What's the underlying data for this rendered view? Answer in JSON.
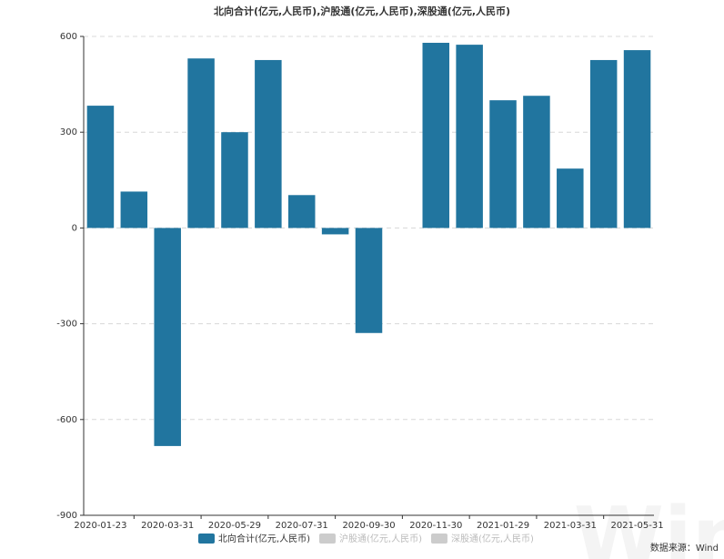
{
  "chart_data": {
    "type": "bar",
    "title": "北向合计(亿元,人民币),沪股通(亿元,人民币),深股通(亿元,人民币)",
    "categories": [
      "2020-01-23",
      null,
      "2020-03-31",
      null,
      "2020-05-29",
      null,
      "2020-07-31",
      null,
      "2020-09-30",
      null,
      "2020-11-30",
      null,
      "2021-01-29",
      null,
      "2021-03-31",
      null,
      "2021-05-31"
    ],
    "series": [
      {
        "name": "北向合计(亿元,人民币)",
        "color": "#21759f",
        "values": [
          383,
          114,
          -683,
          531,
          300,
          526,
          103,
          -20,
          -329,
          null,
          580,
          574,
          400,
          414,
          186,
          526,
          557
        ]
      }
    ],
    "inactive_legend": [
      {
        "name": "沪股通(亿元,人民币)",
        "color": "#cccccc"
      },
      {
        "name": "深股通(亿元,人民币)",
        "color": "#cccccc"
      }
    ],
    "ylim": [
      -900,
      600
    ],
    "yticks": [
      -900,
      -600,
      -300,
      0,
      300,
      600
    ],
    "grid": true,
    "source": "数据来源：Wind",
    "watermark": "Wind"
  }
}
